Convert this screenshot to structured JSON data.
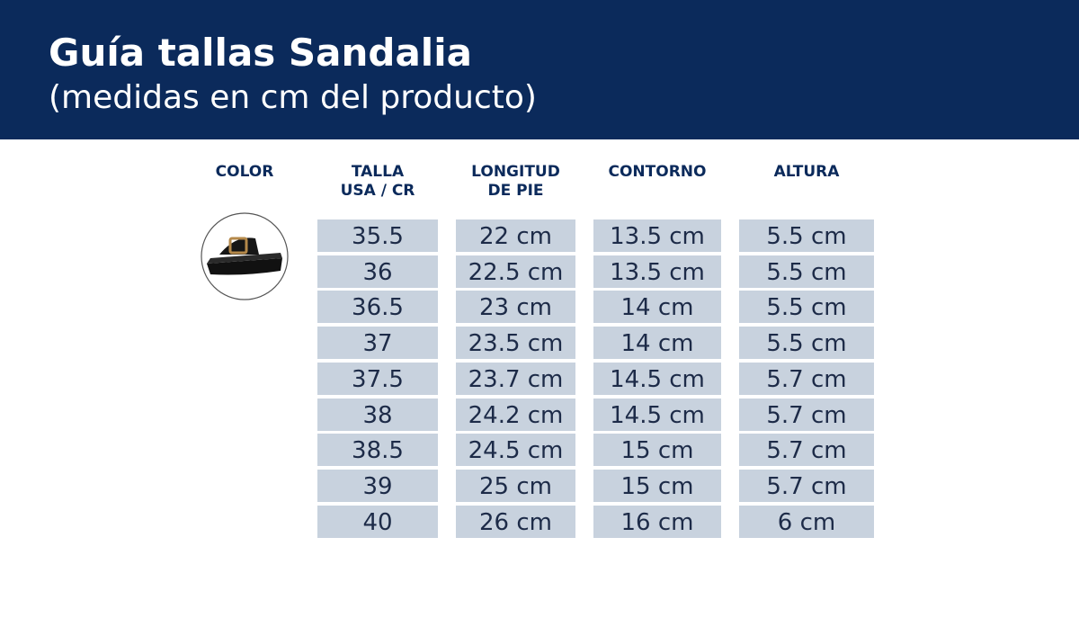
{
  "header": {
    "title": "Guía tallas Sandalia",
    "subtitle": "(medidas en cm del producto)"
  },
  "table": {
    "columns": [
      [
        "COLOR"
      ],
      [
        "TALLA",
        "USA / CR"
      ],
      [
        "LONGITUD",
        "DE PIE"
      ],
      [
        "CONTORNO"
      ],
      [
        "ALTURA"
      ]
    ],
    "rows": [
      [
        "35.5",
        "22 cm",
        "13.5 cm",
        "5.5 cm"
      ],
      [
        "36",
        "22.5 cm",
        "13.5 cm",
        "5.5 cm"
      ],
      [
        "36.5",
        "23 cm",
        "14 cm",
        "5.5 cm"
      ],
      [
        "37",
        "23.5 cm",
        "14 cm",
        "5.5 cm"
      ],
      [
        "37.5",
        "23.7 cm",
        "14.5 cm",
        "5.7 cm"
      ],
      [
        "38",
        "24.2 cm",
        "14.5 cm",
        "5.7 cm"
      ],
      [
        "38.5",
        "24.5 cm",
        "15 cm",
        "5.7 cm"
      ],
      [
        "39",
        "25 cm",
        "15 cm",
        "5.7 cm"
      ],
      [
        "40",
        "26 cm",
        "16 cm",
        "6 cm"
      ]
    ]
  }
}
